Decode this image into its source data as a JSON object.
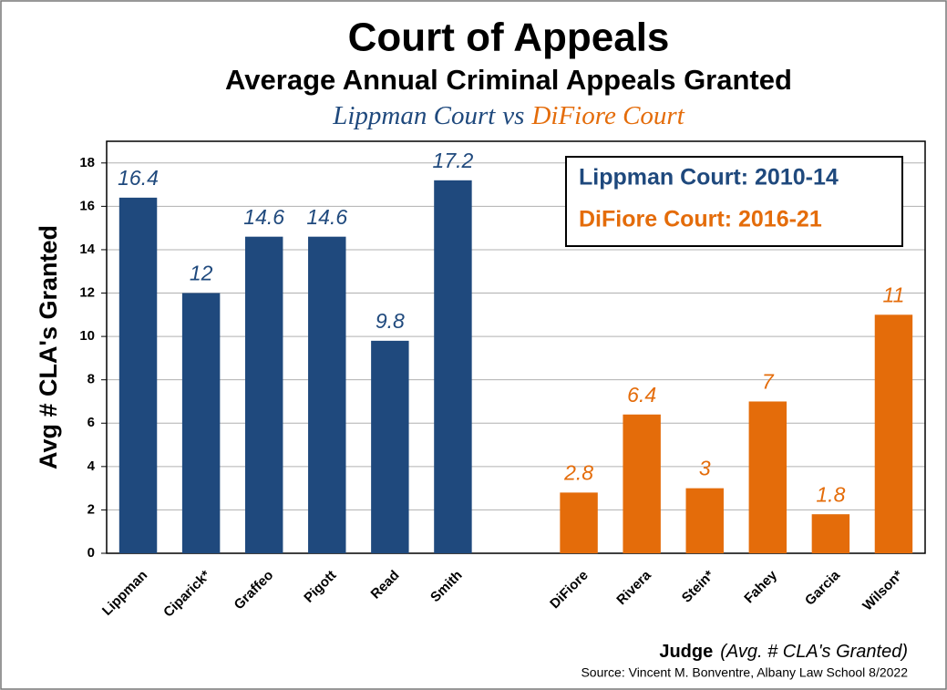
{
  "chart_data": {
    "type": "bar",
    "title": "Court of Appeals",
    "subtitle": "Average Annual Criminal Appeals Granted",
    "comparison": [
      "Lippman Court",
      "vs",
      "DiFiore Court"
    ],
    "categories": [
      "Lippman",
      "Ciparick*",
      "Graffeo",
      "Pigott",
      "Read",
      "Smith",
      null,
      "DiFiore",
      "Rivera",
      "Stein*",
      "Fahey",
      "Garcia",
      "Wilson*"
    ],
    "series": [
      {
        "name": "Lippman Court: 2010-14",
        "color": "#1f497d",
        "values": [
          16.4,
          12,
          14.6,
          14.6,
          9.8,
          17.2,
          null,
          null,
          null,
          null,
          null,
          null,
          null
        ]
      },
      {
        "name": "DiFiore Court: 2016-21",
        "color": "#e46c0a",
        "values": [
          null,
          null,
          null,
          null,
          null,
          null,
          null,
          2.8,
          6.4,
          3,
          7,
          1.8,
          11
        ]
      }
    ],
    "y_label": "Avg # CLA's Granted",
    "x_label": [
      "Judge",
      "(Avg. # CLA's Granted)"
    ],
    "source": "Source: Vincent M. Bonventre, Albany Law School 8/2022",
    "ylim": [
      0,
      19
    ],
    "yticks": [
      0,
      2,
      4,
      6,
      8,
      10,
      12,
      14,
      16,
      18
    ],
    "grid": true,
    "legend": "upper right"
  }
}
